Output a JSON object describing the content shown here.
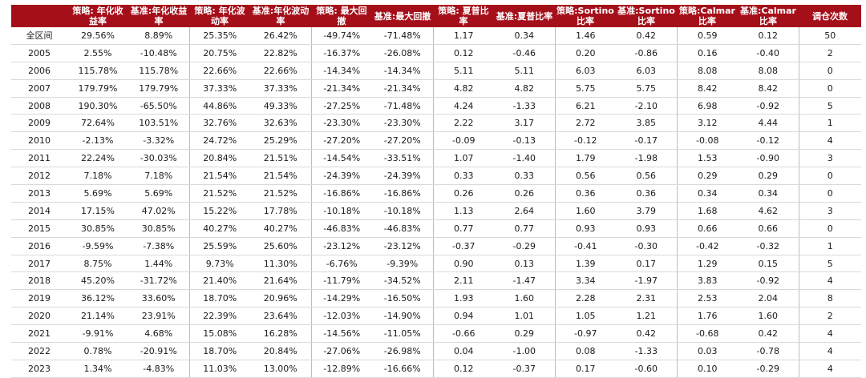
{
  "headers": [
    "",
    "策略: 年化收益率",
    "基准:年化收益率",
    "策略: 年化波动率",
    "基准:年化波动率",
    "策略: 最大回撤",
    "基准:最大回撤",
    "策略: 夏普比率",
    "基准:夏普比率",
    "策略:Sortino比率",
    "基准:Sortino比率",
    "策略:Calmar比率",
    "基准:Calmar比率",
    "调仓次数"
  ],
  "rows": [
    [
      "全区间",
      "29.56%",
      "8.89%",
      "25.35%",
      "26.42%",
      "-49.74%",
      "-71.48%",
      "1.17",
      "0.34",
      "1.46",
      "0.42",
      "0.59",
      "0.12",
      "50"
    ],
    [
      "2005",
      "2.55%",
      "-10.48%",
      "20.75%",
      "22.82%",
      "-16.37%",
      "-26.08%",
      "0.12",
      "-0.46",
      "0.20",
      "-0.86",
      "0.16",
      "-0.40",
      "2"
    ],
    [
      "2006",
      "115.78%",
      "115.78%",
      "22.66%",
      "22.66%",
      "-14.34%",
      "-14.34%",
      "5.11",
      "5.11",
      "6.03",
      "6.03",
      "8.08",
      "8.08",
      "0"
    ],
    [
      "2007",
      "179.79%",
      "179.79%",
      "37.33%",
      "37.33%",
      "-21.34%",
      "-21.34%",
      "4.82",
      "4.82",
      "5.75",
      "5.75",
      "8.42",
      "8.42",
      "0"
    ],
    [
      "2008",
      "190.30%",
      "-65.50%",
      "44.86%",
      "49.33%",
      "-27.25%",
      "-71.48%",
      "4.24",
      "-1.33",
      "6.21",
      "-2.10",
      "6.98",
      "-0.92",
      "5"
    ],
    [
      "2009",
      "72.64%",
      "103.51%",
      "32.76%",
      "32.63%",
      "-23.30%",
      "-23.30%",
      "2.22",
      "3.17",
      "2.72",
      "3.85",
      "3.12",
      "4.44",
      "1"
    ],
    [
      "2010",
      "-2.13%",
      "-3.32%",
      "24.72%",
      "25.29%",
      "-27.20%",
      "-27.20%",
      "-0.09",
      "-0.13",
      "-0.12",
      "-0.17",
      "-0.08",
      "-0.12",
      "4"
    ],
    [
      "2011",
      "22.24%",
      "-30.03%",
      "20.84%",
      "21.51%",
      "-14.54%",
      "-33.51%",
      "1.07",
      "-1.40",
      "1.79",
      "-1.98",
      "1.53",
      "-0.90",
      "3"
    ],
    [
      "2012",
      "7.18%",
      "7.18%",
      "21.54%",
      "21.54%",
      "-24.39%",
      "-24.39%",
      "0.33",
      "0.33",
      "0.56",
      "0.56",
      "0.29",
      "0.29",
      "0"
    ],
    [
      "2013",
      "5.69%",
      "5.69%",
      "21.52%",
      "21.52%",
      "-16.86%",
      "-16.86%",
      "0.26",
      "0.26",
      "0.36",
      "0.36",
      "0.34",
      "0.34",
      "0"
    ],
    [
      "2014",
      "17.15%",
      "47.02%",
      "15.22%",
      "17.78%",
      "-10.18%",
      "-10.18%",
      "1.13",
      "2.64",
      "1.60",
      "3.79",
      "1.68",
      "4.62",
      "3"
    ],
    [
      "2015",
      "30.85%",
      "30.85%",
      "40.27%",
      "40.27%",
      "-46.83%",
      "-46.83%",
      "0.77",
      "0.77",
      "0.93",
      "0.93",
      "0.66",
      "0.66",
      "0"
    ],
    [
      "2016",
      "-9.59%",
      "-7.38%",
      "25.59%",
      "25.60%",
      "-23.12%",
      "-23.12%",
      "-0.37",
      "-0.29",
      "-0.41",
      "-0.30",
      "-0.42",
      "-0.32",
      "1"
    ],
    [
      "2017",
      "8.75%",
      "1.44%",
      "9.73%",
      "11.30%",
      "-6.76%",
      "-9.39%",
      "0.90",
      "0.13",
      "1.39",
      "0.17",
      "1.29",
      "0.15",
      "5"
    ],
    [
      "2018",
      "45.20%",
      "-31.72%",
      "21.40%",
      "21.64%",
      "-11.79%",
      "-34.52%",
      "2.11",
      "-1.47",
      "3.34",
      "-1.97",
      "3.83",
      "-0.92",
      "4"
    ],
    [
      "2019",
      "36.12%",
      "33.60%",
      "18.70%",
      "20.96%",
      "-14.29%",
      "-16.50%",
      "1.93",
      "1.60",
      "2.28",
      "2.31",
      "2.53",
      "2.04",
      "8"
    ],
    [
      "2020",
      "21.14%",
      "23.91%",
      "22.39%",
      "23.64%",
      "-12.03%",
      "-14.90%",
      "0.94",
      "1.01",
      "1.05",
      "1.21",
      "1.76",
      "1.60",
      "2"
    ],
    [
      "2021",
      "-9.91%",
      "4.68%",
      "15.08%",
      "16.28%",
      "-14.56%",
      "-11.05%",
      "-0.66",
      "0.29",
      "-0.97",
      "0.42",
      "-0.68",
      "0.42",
      "4"
    ],
    [
      "2022",
      "0.78%",
      "-20.91%",
      "18.70%",
      "20.84%",
      "-27.06%",
      "-26.98%",
      "0.04",
      "-1.00",
      "0.08",
      "-1.33",
      "0.03",
      "-0.78",
      "4"
    ],
    [
      "2023",
      "1.34%",
      "-4.83%",
      "11.03%",
      "13.00%",
      "-12.89%",
      "-16.66%",
      "0.12",
      "-0.37",
      "0.17",
      "-0.60",
      "0.10",
      "-0.29",
      "4"
    ]
  ],
  "colors": {
    "header_bg": "#a50f1a",
    "header_text": "#ffffff",
    "row_border": "#d9d9d9"
  }
}
